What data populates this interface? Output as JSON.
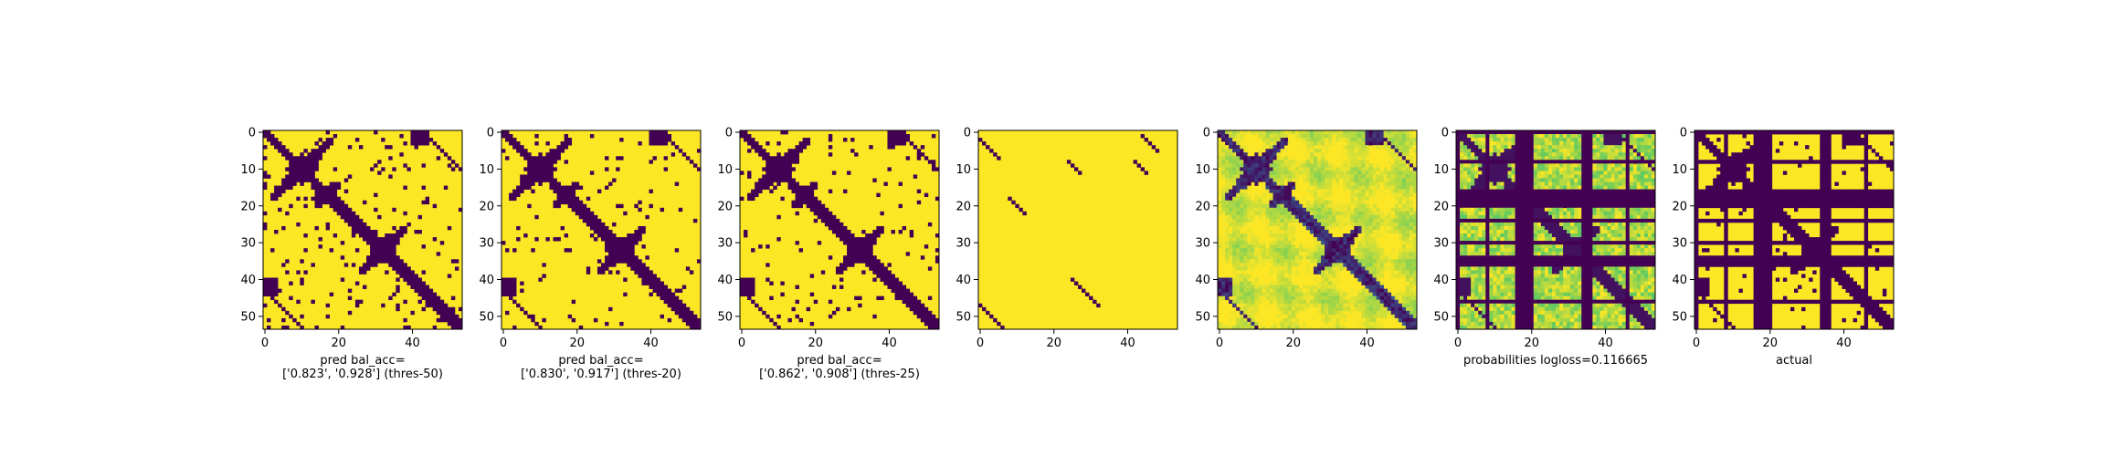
{
  "colors": {
    "dark": "#440154",
    "mid": "#21918c",
    "light": "#5ec962",
    "bright": "#fde725",
    "axis": "#000000"
  },
  "chart_data": [
    {
      "type": "heatmap",
      "pattern": "pred_thres50",
      "rows": 54,
      "cols": 54,
      "xticks": [
        0,
        20,
        40
      ],
      "yticks": [
        0,
        10,
        20,
        30,
        40,
        50
      ],
      "xlabel": "pred bal_acc=\n['0.823', '0.928'] (thres-50)",
      "colormap": "viridis"
    },
    {
      "type": "heatmap",
      "pattern": "pred_thres20",
      "rows": 54,
      "cols": 54,
      "xticks": [
        0,
        20,
        40
      ],
      "yticks": [
        0,
        10,
        20,
        30,
        40,
        50
      ],
      "xlabel": "pred bal_acc=\n['0.830', '0.917'] (thres-20)",
      "colormap": "viridis"
    },
    {
      "type": "heatmap",
      "pattern": "pred_thres25",
      "rows": 54,
      "cols": 54,
      "xticks": [
        0,
        20,
        40
      ],
      "yticks": [
        0,
        10,
        20,
        30,
        40,
        50
      ],
      "xlabel": "pred bal_acc=\n['0.862', '0.908'] (thres-25)",
      "colormap": "viridis"
    },
    {
      "type": "heatmap",
      "pattern": "sparse_diagonals",
      "rows": 54,
      "cols": 54,
      "xticks": [
        0,
        20,
        40
      ],
      "yticks": [
        0,
        10,
        20,
        30,
        40,
        50
      ],
      "xlabel": "",
      "colormap": "viridis"
    },
    {
      "type": "heatmap",
      "pattern": "continuous",
      "rows": 54,
      "cols": 54,
      "xticks": [
        0,
        20,
        40
      ],
      "yticks": [
        0,
        10,
        20,
        30,
        40,
        50
      ],
      "xlabel": "",
      "colormap": "viridis"
    },
    {
      "type": "heatmap",
      "pattern": "probabilities_masked",
      "rows": 54,
      "cols": 54,
      "xticks": [
        0,
        20,
        40
      ],
      "yticks": [
        0,
        10,
        20,
        30,
        40,
        50
      ],
      "xlabel": "probabilities logloss=0.116665",
      "colormap": "viridis"
    },
    {
      "type": "heatmap",
      "pattern": "actual_masked",
      "rows": 54,
      "cols": 54,
      "xticks": [
        0,
        20,
        40
      ],
      "yticks": [
        0,
        10,
        20,
        30,
        40,
        50
      ],
      "xlabel": "actual",
      "colormap": "viridis"
    }
  ]
}
